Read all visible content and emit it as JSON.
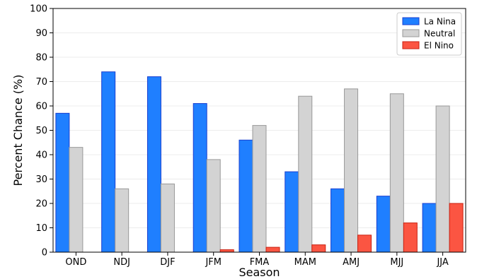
{
  "chart_data": {
    "type": "bar",
    "title": "",
    "xlabel": "Season",
    "ylabel": "Percent Chance (%)",
    "ylim": [
      0,
      100
    ],
    "yticks": [
      0,
      10,
      20,
      30,
      40,
      50,
      60,
      70,
      80,
      90,
      100
    ],
    "grid": "horizontal",
    "legend_position": "top-right",
    "categories": [
      "OND",
      "NDJ",
      "DJF",
      "JFM",
      "FMA",
      "MAM",
      "AMJ",
      "MJJ",
      "JJA"
    ],
    "series": [
      {
        "name": "La Nina",
        "color": "#1f7fff",
        "edge": "#1a3fd0",
        "values": [
          57,
          74,
          72,
          61,
          46,
          33,
          26,
          23,
          20
        ]
      },
      {
        "name": "Neutral",
        "color": "#d3d3d3",
        "edge": "#999999",
        "values": [
          43,
          26,
          28,
          38,
          52,
          64,
          67,
          65,
          60
        ]
      },
      {
        "name": "El Nino",
        "color": "#fb5542",
        "edge": "#c92010",
        "values": [
          0,
          0,
          0,
          1,
          2,
          3,
          7,
          12,
          20
        ]
      }
    ]
  }
}
